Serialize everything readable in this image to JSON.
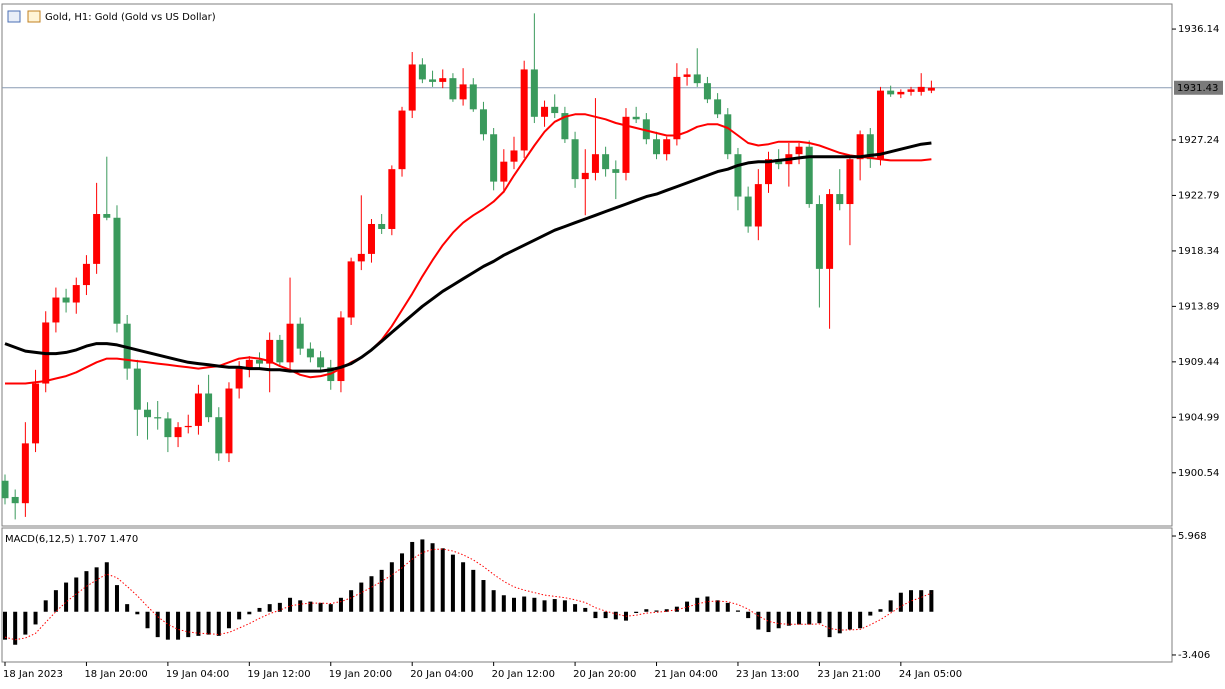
{
  "chart_data": [
    {
      "type": "candlestick",
      "title": "Gold, H1:  Gold (Gold vs US Dollar)",
      "categories": [
        "18 Jan 2023",
        null,
        null,
        null,
        null,
        null,
        null,
        null,
        "18 Jan 20:00",
        null,
        null,
        null,
        null,
        null,
        null,
        null,
        "19 Jan 04:00",
        null,
        null,
        null,
        null,
        null,
        null,
        null,
        "19 Jan 12:00",
        null,
        null,
        null,
        null,
        null,
        null,
        null,
        "19 Jan 20:00",
        null,
        null,
        null,
        null,
        null,
        null,
        null,
        "20 Jan 04:00",
        null,
        null,
        null,
        null,
        null,
        null,
        null,
        "20 Jan 12:00",
        null,
        null,
        null,
        null,
        null,
        null,
        null,
        "20 Jan 20:00",
        null,
        null,
        null,
        null,
        null,
        null,
        null,
        "21 Jan 04:00",
        null,
        null,
        null,
        null,
        null,
        null,
        null,
        "23 Jan 13:00",
        null,
        null,
        null,
        null,
        null,
        null,
        null,
        "23 Jan 21:00",
        null,
        null,
        null,
        null,
        null,
        null,
        null,
        "24 Jan 05:00",
        null,
        null,
        null
      ],
      "open": [
        1899.9,
        1898.6,
        1898.1,
        1902.9,
        1907.7,
        1912.6,
        1914.6,
        1914.2,
        1915.6,
        1917.3,
        1921.3,
        1921.0,
        1912.5,
        1908.9,
        1905.6,
        1905.0,
        1904.9,
        1903.4,
        1904.2,
        1904.3,
        1906.9,
        1905.0,
        1902.1,
        1907.3,
        1908.9,
        1909.6,
        1909.3,
        1911.2,
        1909.4,
        1912.5,
        1910.5,
        1909.8,
        1909.0,
        1907.9,
        1913.0,
        1917.5,
        1918.1,
        1920.5,
        1920.1,
        1924.9,
        1929.6,
        1933.3,
        1932.1,
        1931.9,
        1932.2,
        1930.5,
        1931.7,
        1929.7,
        1927.7,
        1923.9,
        1925.5,
        1926.4,
        1932.9,
        1929.1,
        1929.9,
        1929.4,
        1927.3,
        1924.1,
        1924.6,
        1926.1,
        1924.9,
        1924.6,
        1929.1,
        1928.9,
        1927.3,
        1926.1,
        1927.3,
        1932.3,
        1932.5,
        1931.8,
        1930.5,
        1929.3,
        1926.1,
        1922.7,
        1920.3,
        1923.7,
        1925.7,
        1925.3,
        1926.1,
        1926.7,
        1922.1,
        1916.9,
        1922.9,
        1922.1,
        1925.7,
        1927.7,
        1925.7,
        1931.2,
        1930.9,
        1931.1,
        1931.1,
        1931.2
      ],
      "high": [
        1900.4,
        1899.2,
        1904.6,
        1908.8,
        1913.5,
        1915.4,
        1915.3,
        1916.2,
        1918.0,
        1923.8,
        1925.9,
        1922.0,
        1913.2,
        1909.6,
        1906.2,
        1906.3,
        1905.4,
        1904.6,
        1905.2,
        1907.6,
        1908.4,
        1905.8,
        1907.8,
        1909.5,
        1909.9,
        1910.2,
        1911.8,
        1911.6,
        1916.2,
        1913.0,
        1911.0,
        1910.3,
        1909.6,
        1913.5,
        1917.8,
        1922.8,
        1920.9,
        1921.3,
        1925.2,
        1929.9,
        1934.3,
        1933.8,
        1932.8,
        1932.9,
        1932.6,
        1933.0,
        1932.2,
        1930.3,
        1928.2,
        1926.5,
        1927.5,
        1933.6,
        1937.4,
        1930.4,
        1930.9,
        1929.9,
        1927.9,
        1926.5,
        1930.6,
        1926.7,
        1925.6,
        1929.8,
        1929.9,
        1929.4,
        1927.9,
        1927.5,
        1933.4,
        1933.0,
        1934.6,
        1932.3,
        1931.0,
        1929.8,
        1926.6,
        1923.5,
        1924.9,
        1926.3,
        1926.5,
        1927.0,
        1927.0,
        1927.2,
        1922.8,
        1923.3,
        1924.9,
        1926.0,
        1928.0,
        1928.2,
        1931.5,
        1931.6,
        1931.3,
        1931.5,
        1932.6,
        1932.0
      ],
      "low": [
        1898.0,
        1896.8,
        1897.0,
        1902.2,
        1907.0,
        1911.8,
        1913.4,
        1913.3,
        1914.8,
        1916.5,
        1920.8,
        1911.8,
        1908.0,
        1903.5,
        1903.2,
        1904.0,
        1902.2,
        1902.6,
        1903.7,
        1903.6,
        1904.6,
        1901.5,
        1901.4,
        1906.5,
        1908.2,
        1908.8,
        1907.0,
        1909.1,
        1908.8,
        1910.0,
        1909.4,
        1908.6,
        1907.2,
        1907.0,
        1912.4,
        1916.8,
        1917.4,
        1919.7,
        1919.6,
        1924.3,
        1929.0,
        1931.8,
        1931.5,
        1931.4,
        1930.3,
        1930.0,
        1929.5,
        1927.2,
        1923.2,
        1923.0,
        1924.9,
        1925.8,
        1928.6,
        1928.3,
        1929.0,
        1927.0,
        1923.4,
        1921.2,
        1924.0,
        1924.3,
        1922.5,
        1924.0,
        1928.6,
        1926.9,
        1925.7,
        1925.6,
        1926.8,
        1931.6,
        1931.5,
        1930.2,
        1929.0,
        1925.7,
        1921.6,
        1919.8,
        1919.2,
        1923.0,
        1924.9,
        1923.5,
        1925.3,
        1921.8,
        1913.8,
        1912.1,
        1921.6,
        1918.8,
        1924.0,
        1925.0,
        1925.2,
        1930.7,
        1930.6,
        1930.8,
        1930.8,
        1931.0
      ],
      "close": [
        1898.5,
        1898.1,
        1902.9,
        1907.7,
        1912.6,
        1914.6,
        1914.2,
        1915.6,
        1917.3,
        1921.3,
        1921.0,
        1912.5,
        1908.9,
        1905.6,
        1905.0,
        1904.9,
        1903.4,
        1904.2,
        1904.3,
        1906.9,
        1905.0,
        1902.1,
        1907.3,
        1908.9,
        1909.6,
        1909.3,
        1911.2,
        1909.4,
        1912.5,
        1910.5,
        1909.8,
        1909.0,
        1907.9,
        1913.0,
        1917.5,
        1918.1,
        1920.5,
        1920.1,
        1924.9,
        1929.6,
        1933.3,
        1932.1,
        1931.9,
        1932.2,
        1930.5,
        1931.7,
        1929.7,
        1927.7,
        1923.9,
        1925.5,
        1926.4,
        1932.9,
        1929.1,
        1929.9,
        1929.4,
        1927.3,
        1924.1,
        1924.6,
        1926.1,
        1924.9,
        1924.6,
        1929.1,
        1928.9,
        1927.3,
        1926.1,
        1927.3,
        1932.3,
        1932.5,
        1931.8,
        1930.5,
        1929.3,
        1926.1,
        1922.7,
        1920.3,
        1923.7,
        1925.7,
        1925.3,
        1926.1,
        1926.7,
        1922.1,
        1916.9,
        1922.9,
        1922.1,
        1925.7,
        1927.7,
        1925.7,
        1931.2,
        1930.9,
        1931.1,
        1931.3,
        1931.5,
        1931.43
      ],
      "up_color": "#ff0000",
      "down_color": "#3a9a5c",
      "lines": [
        {
          "color": "#ff0000",
          "width": 2,
          "values": [
            1907.7,
            1907.7,
            1907.7,
            1907.8,
            1907.9,
            1908.1,
            1908.3,
            1908.6,
            1909.0,
            1909.4,
            1909.7,
            1909.7,
            1909.6,
            1909.5,
            1909.4,
            1909.3,
            1909.2,
            1909.1,
            1909.0,
            1908.9,
            1909.0,
            1909.1,
            1909.4,
            1909.7,
            1909.8,
            1909.7,
            1909.5,
            1909.1,
            1908.8,
            1908.4,
            1908.2,
            1908.3,
            1908.5,
            1908.9,
            1909.4,
            1909.8,
            1910.4,
            1911.2,
            1912.3,
            1913.6,
            1914.9,
            1916.3,
            1917.6,
            1918.8,
            1919.8,
            1920.6,
            1921.2,
            1921.7,
            1922.3,
            1923.1,
            1924.4,
            1925.6,
            1926.8,
            1927.9,
            1928.7,
            1929.1,
            1929.3,
            1929.3,
            1929.1,
            1928.9,
            1928.6,
            1928.4,
            1928.2,
            1928.0,
            1927.8,
            1927.6,
            1927.6,
            1927.9,
            1928.3,
            1928.5,
            1928.5,
            1928.2,
            1927.6,
            1927.0,
            1926.8,
            1926.9,
            1927.1,
            1927.1,
            1927.1,
            1927.0,
            1926.8,
            1926.5,
            1926.2,
            1926.0,
            1925.9,
            1925.8,
            1925.7,
            1925.6,
            1925.6,
            1925.6,
            1925.6,
            1925.7
          ]
        },
        {
          "color": "#000000",
          "width": 3,
          "values": [
            1910.9,
            1910.6,
            1910.3,
            1910.2,
            1910.1,
            1910.1,
            1910.2,
            1910.4,
            1910.7,
            1910.9,
            1910.9,
            1910.8,
            1910.6,
            1910.4,
            1910.2,
            1910.0,
            1909.8,
            1909.6,
            1909.4,
            1909.3,
            1909.2,
            1909.1,
            1909.0,
            1909.0,
            1908.9,
            1908.9,
            1908.8,
            1908.8,
            1908.7,
            1908.7,
            1908.7,
            1908.7,
            1908.8,
            1909.0,
            1909.3,
            1909.8,
            1910.4,
            1911.1,
            1911.8,
            1912.5,
            1913.2,
            1913.9,
            1914.5,
            1915.1,
            1915.6,
            1916.1,
            1916.6,
            1917.1,
            1917.5,
            1918.0,
            1918.4,
            1918.8,
            1919.2,
            1919.6,
            1920.0,
            1920.3,
            1920.6,
            1920.9,
            1921.2,
            1921.5,
            1921.8,
            1922.1,
            1922.4,
            1922.7,
            1922.9,
            1923.2,
            1923.5,
            1923.8,
            1924.1,
            1924.4,
            1924.7,
            1924.9,
            1925.2,
            1925.4,
            1925.5,
            1925.5,
            1925.6,
            1925.7,
            1925.8,
            1925.9,
            1925.9,
            1925.9,
            1925.9,
            1925.9,
            1925.9,
            1926.0,
            1926.1,
            1926.3,
            1926.5,
            1926.7,
            1926.9,
            1927.0
          ]
        }
      ],
      "current_price": 1931.43,
      "current_price_color": "#8a9bb3",
      "ylim": [
        1896.27,
        1938.15
      ],
      "yticks": [
        1900.54,
        1904.99,
        1909.44,
        1913.89,
        1918.34,
        1922.79,
        1927.24,
        1936.14
      ]
    },
    {
      "type": "macd",
      "title": "MACD(6,12,5) 1.707 1.470",
      "values": [
        -2.2,
        -2.6,
        -1.8,
        -1.0,
        0.9,
        1.7,
        2.3,
        2.7,
        3.2,
        3.5,
        3.9,
        2.1,
        0.6,
        -0.2,
        -1.3,
        -2.0,
        -2.2,
        -2.2,
        -2.0,
        -1.9,
        -1.8,
        -1.9,
        -1.3,
        -0.6,
        -0.2,
        0.3,
        0.6,
        0.7,
        1.1,
        0.9,
        0.8,
        0.7,
        0.6,
        1.1,
        1.7,
        2.3,
        2.8,
        3.3,
        3.9,
        4.6,
        5.5,
        5.7,
        5.4,
        5.0,
        4.5,
        3.9,
        3.3,
        2.5,
        1.7,
        1.3,
        1.1,
        1.2,
        1.1,
        0.9,
        1.0,
        0.9,
        0.6,
        0.3,
        -0.5,
        -0.5,
        -0.6,
        -0.7,
        -0.1,
        0.2,
        0.1,
        0.2,
        0.4,
        0.8,
        1.1,
        1.2,
        0.9,
        0.7,
        0.1,
        -0.5,
        -1.4,
        -1.6,
        -1.3,
        -1.1,
        -1.0,
        -1.0,
        -0.9,
        -2.0,
        -1.7,
        -1.4,
        -1.3,
        -0.3,
        0.2,
        0.9,
        1.5,
        1.7,
        1.7,
        1.707
      ],
      "color": "#000000",
      "signal": {
        "color": "#ff0000",
        "values": [
          -2.0,
          -2.2,
          -2.07,
          -1.71,
          -0.84,
          0.01,
          0.77,
          1.41,
          2.0,
          2.5,
          2.97,
          2.68,
          1.99,
          1.26,
          0.41,
          -0.39,
          -0.99,
          -1.39,
          -1.59,
          -1.69,
          -1.73,
          -1.79,
          -1.63,
          -1.29,
          -0.93,
          -0.52,
          -0.15,
          0.13,
          0.45,
          0.6,
          0.67,
          0.68,
          0.65,
          0.8,
          1.1,
          1.5,
          1.93,
          2.39,
          2.89,
          3.46,
          4.14,
          4.66,
          4.91,
          4.94,
          4.79,
          4.49,
          4.09,
          3.56,
          2.94,
          2.39,
          1.96,
          1.71,
          1.51,
          1.31,
          1.21,
          1.11,
          0.94,
          0.73,
          0.32,
          0.05,
          -0.17,
          -0.35,
          -0.27,
          -0.11,
          -0.04,
          0.04,
          0.16,
          0.37,
          0.61,
          0.81,
          0.84,
          0.79,
          0.56,
          0.21,
          -0.33,
          -0.75,
          -0.93,
          -0.99,
          -0.99,
          -0.99,
          -0.96,
          -1.31,
          -1.44,
          -1.43,
          -1.39,
          -1.03,
          -0.62,
          -0.11,
          0.43,
          0.85,
          1.13,
          1.47
        ]
      },
      "ylim": [
        -3.96,
        6.6
      ],
      "yticks": [
        5.968,
        -3.406
      ]
    }
  ]
}
